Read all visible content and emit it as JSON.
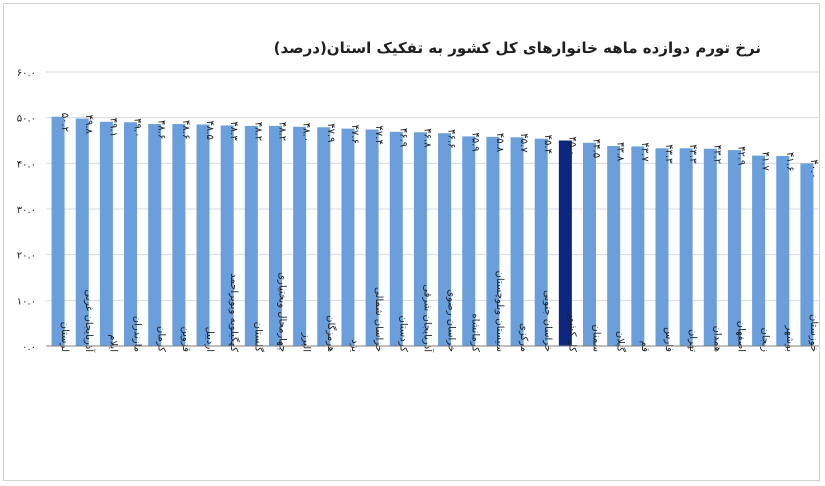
{
  "chart_data": {
    "type": "bar",
    "title": "نرخ تورم دوازده ماهه خانوارهای کل کشور به تفکیک استان(درصد)",
    "xlabel": "",
    "ylabel": "",
    "ylim": [
      0,
      60
    ],
    "yticks": [
      0,
      10,
      20,
      30,
      40,
      50,
      60
    ],
    "ytick_labels": [
      "۰.۰",
      "۱۰.۰",
      "۲۰.۰",
      "۳۰.۰",
      "۴۰.۰",
      "۵۰.۰",
      "۶۰.۰"
    ],
    "grid": true,
    "legend": "none",
    "colors": {
      "bar": "#6a9fdb",
      "highlight": "#0c2782",
      "grid": "#d9d9d9",
      "axis": "#7f7f7f",
      "text": "#1f1f1f"
    },
    "categories": [
      "لرستان",
      "آذربایجان غربی",
      "ایلام",
      "مازندران",
      "کرمان",
      "قزوین",
      "اردبیل",
      "کهگیلویه وبویراحمد",
      "گلستان",
      "چهارمحال وبختیاری",
      "البرز",
      "هرمزگان",
      "یزد",
      "خراسان شمالی",
      "کردستان",
      "آذربایجان شرقی",
      "خراسان رضوی",
      "کرمانشاه",
      "سیستان وبلوچستان",
      "مرکزی",
      "خراسان جنوبی",
      "کل کشور",
      "سمنان",
      "گیلان",
      "قم",
      "فارس",
      "تهران",
      "همدان",
      "اصفهان",
      "زنجان",
      "بوشهر",
      "خوزستان"
    ],
    "values": [
      50.2,
      49.8,
      49.1,
      49.0,
      48.6,
      48.6,
      48.5,
      48.3,
      48.2,
      48.2,
      48.0,
      47.9,
      47.6,
      47.4,
      46.9,
      46.8,
      46.6,
      45.9,
      45.8,
      45.7,
      45.4,
      45.0,
      44.5,
      43.8,
      43.7,
      43.3,
      43.3,
      43.2,
      42.9,
      41.7,
      41.6,
      40.0
    ],
    "value_labels": [
      "۵۰.۲",
      "۴۹.۸",
      "۴۹.۱",
      "۴۹.۰",
      "۴۸.۶",
      "۴۸.۶",
      "۴۸.۵",
      "۴۸.۳",
      "۴۸.۲",
      "۴۸.۲",
      "۴۸.۰",
      "۴۷.۹",
      "۴۷.۶",
      "۴۷.۴",
      "۴۶.۹",
      "۴۶.۸",
      "۴۶.۶",
      "۴۵.۹",
      "۴۵.۸",
      "۴۵.۷",
      "۴۵.۴",
      "۴۵.۰",
      "۴۴.۵",
      "۴۳.۸",
      "۴۳.۷",
      "۴۳.۳",
      "۴۳.۳",
      "۴۳.۲",
      "۴۲.۹",
      "۴۱.۷",
      "۴۱.۶",
      "۴۰.۰"
    ],
    "highlight_category": "کل کشور"
  }
}
